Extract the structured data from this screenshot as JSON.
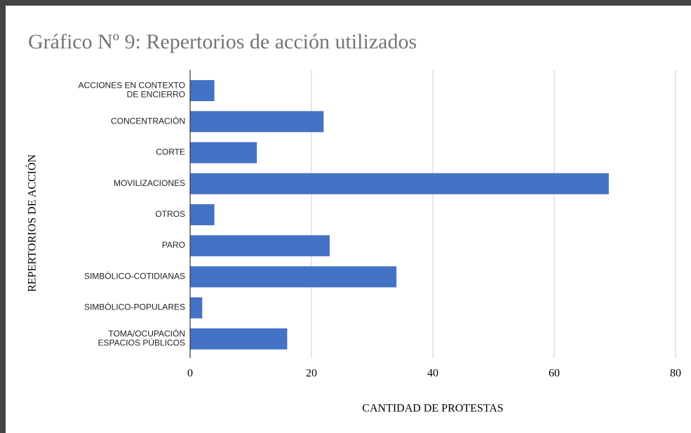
{
  "chart_data": {
    "type": "bar",
    "orientation": "horizontal",
    "title": "Gráfico Nº 9: Repertorios de acción utilizados",
    "x_label": "CANTIDAD DE PROTESTAS",
    "y_label": "REPERTORIOS DE ACCIÓN",
    "categories": [
      "ACCIONES EN CONTEXTO\nDE ENCIERRO",
      "CONCENTRACIÓN",
      "CORTE",
      "MOVILIZACIONES",
      "OTROS",
      "PARO",
      "SIMBÓLICO-COTIDIANAS",
      "SIMBÓLICO-POPULARES",
      "TOMA/OCUPACIÓN\nESPACIOS PÚBLICOS"
    ],
    "values": [
      4,
      22,
      11,
      69,
      4,
      23,
      34,
      2,
      16
    ],
    "color": "#4472c4",
    "xlim": [
      0,
      80
    ],
    "xticks": [
      0,
      20,
      40,
      60,
      80
    ],
    "grid": true
  }
}
